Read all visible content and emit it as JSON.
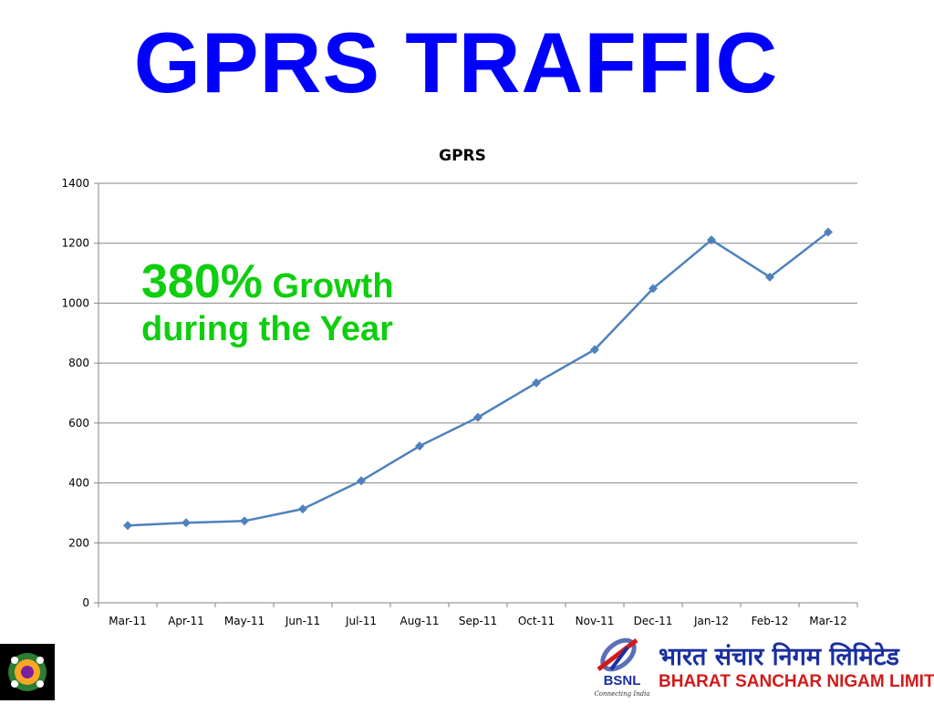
{
  "slide": {
    "title": "GPRS TRAFFIC"
  },
  "callout": {
    "percent": "380%",
    "line1_rest": " Growth",
    "line2": "during the Year",
    "color": "#0fce0f"
  },
  "footer": {
    "org_hindi": "भारत संचार निगम लिमिटेड",
    "org_english": "BHARAT SANCHAR NIGAM LIMITED",
    "logo_text": "BSNL",
    "tagline": "Connecting India"
  },
  "chart_data": {
    "type": "line",
    "title": "GPRS",
    "categories": [
      "Mar-11",
      "Apr-11",
      "May-11",
      "Jun-11",
      "Jul-11",
      "Aug-11",
      "Sep-11",
      "Oct-11",
      "Nov-11",
      "Dec-11",
      "Jan-12",
      "Feb-12",
      "Mar-12"
    ],
    "series": [
      {
        "values": [
          258,
          267,
          273,
          313,
          407,
          523,
          619,
          734,
          845,
          1049,
          1211,
          1087,
          1237
        ],
        "color": "#4f81bd",
        "marker": "diamond"
      }
    ],
    "ylim": [
      0,
      1400
    ],
    "yticks": [
      0,
      200,
      400,
      600,
      800,
      1000,
      1200,
      1400
    ],
    "grid": true,
    "legend": "none"
  }
}
